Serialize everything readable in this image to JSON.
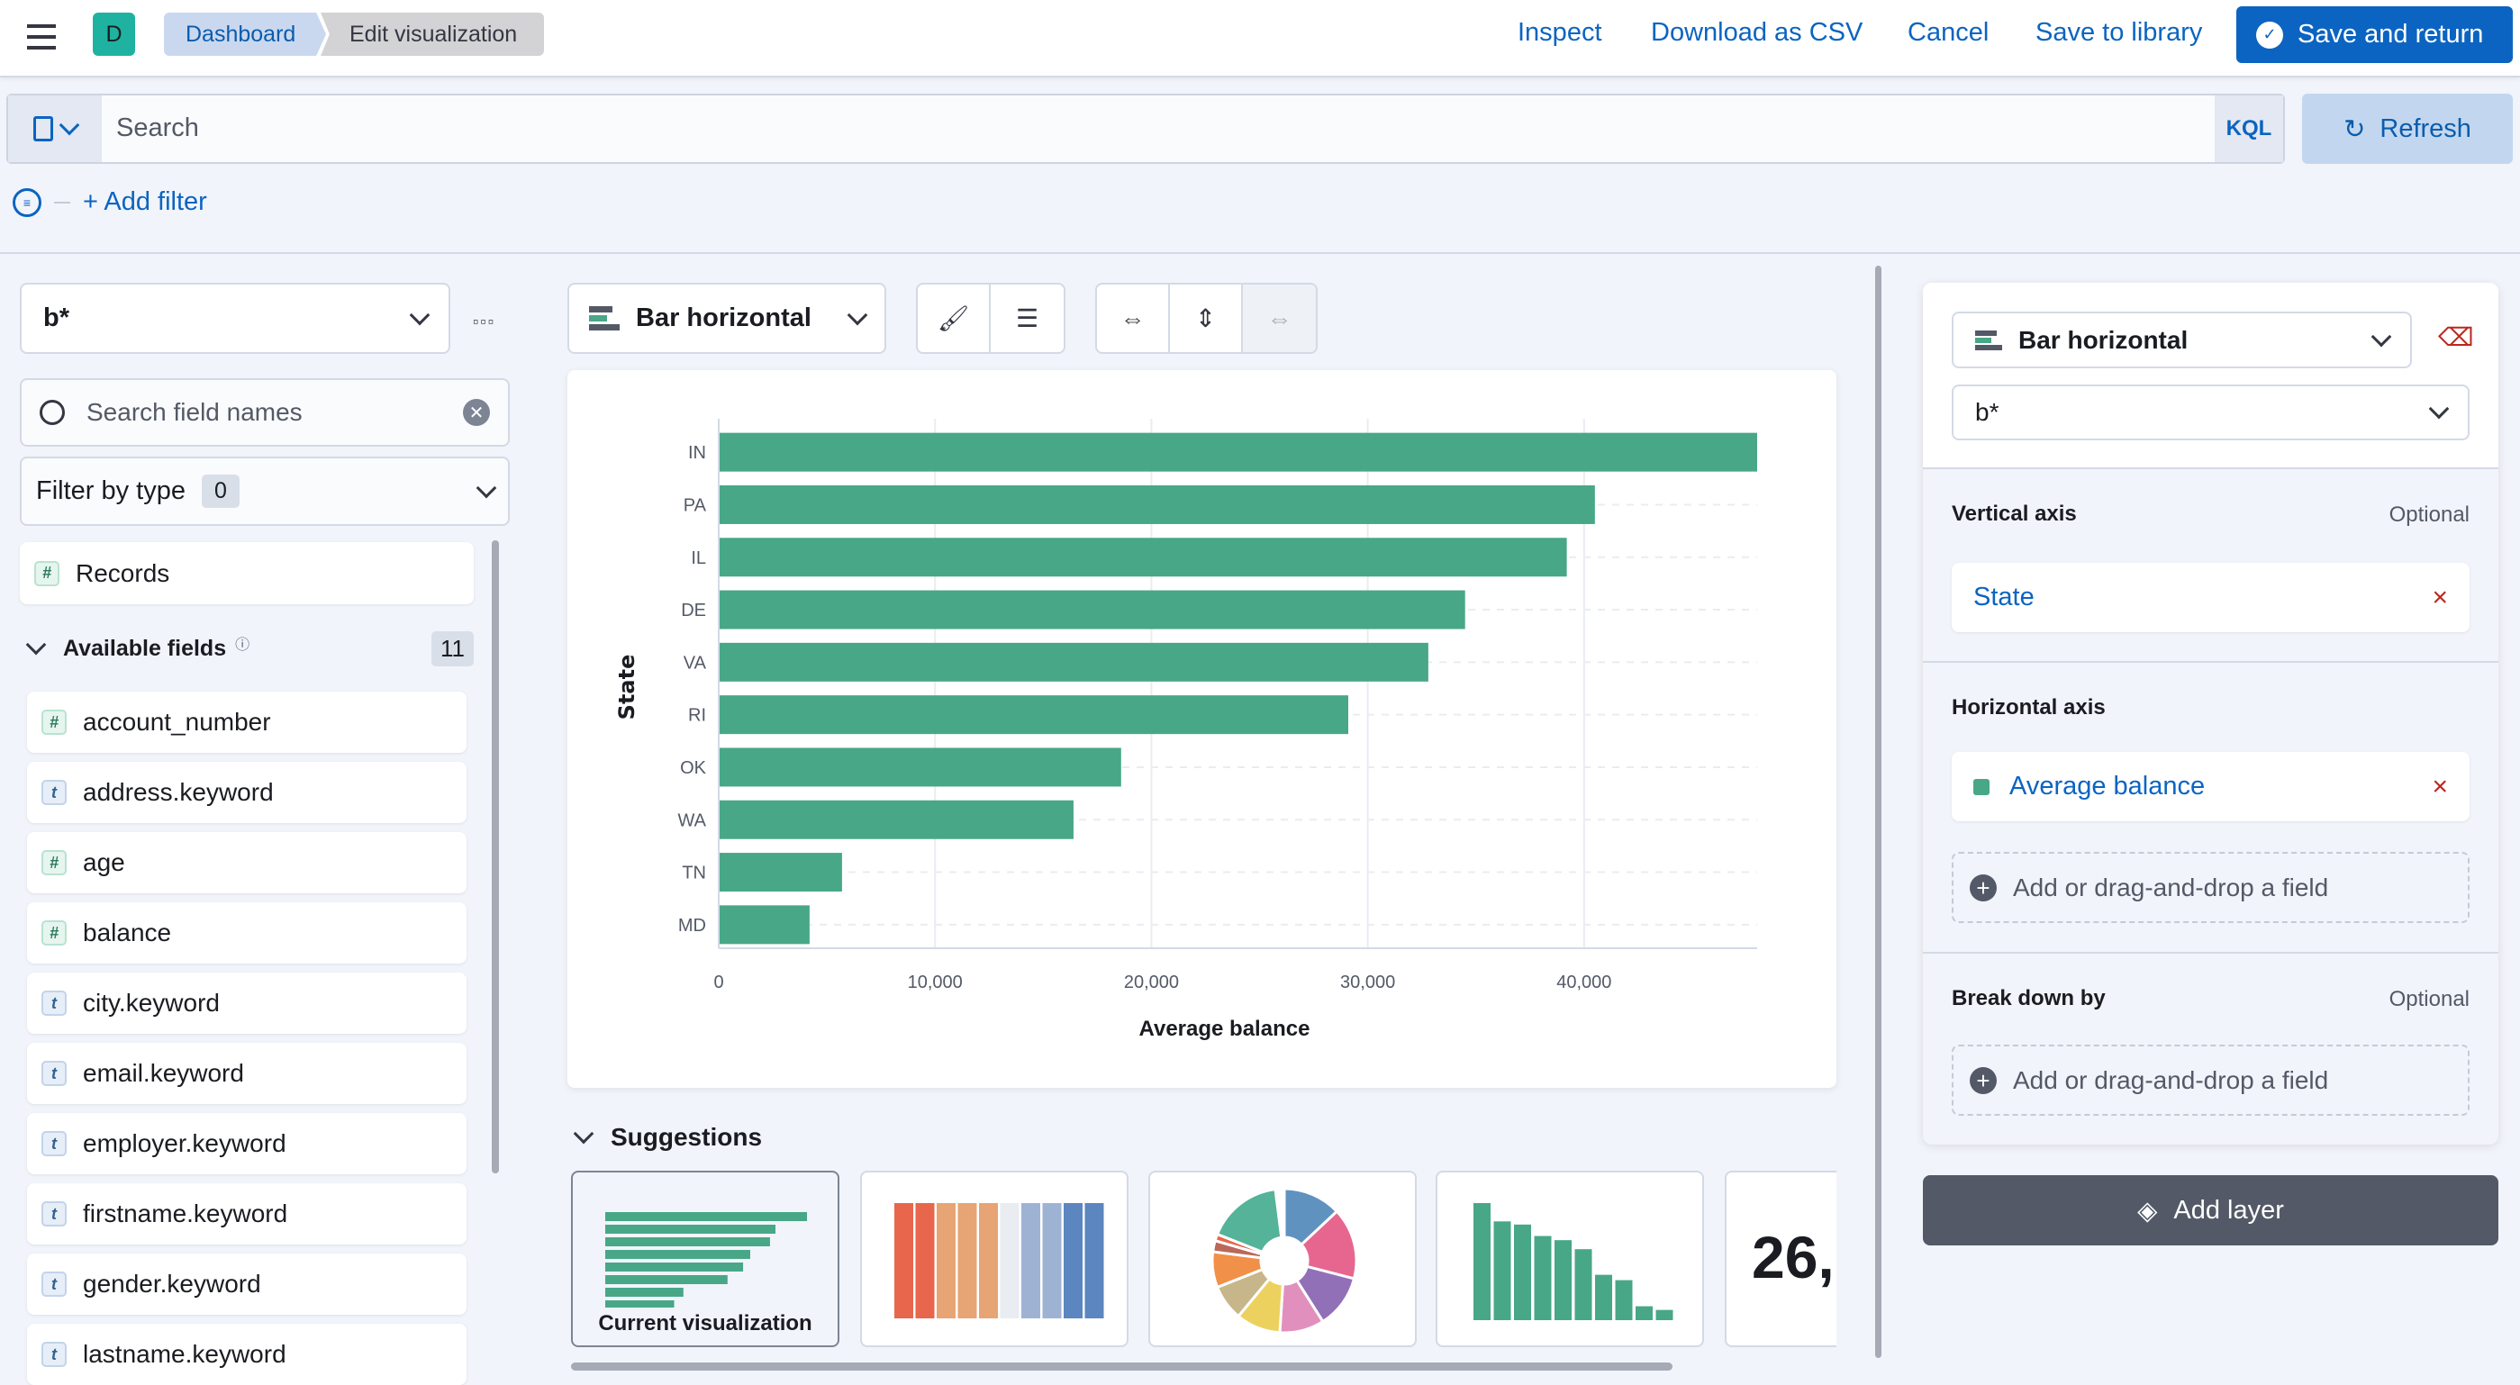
{
  "header": {
    "avatar_initial": "D",
    "breadcrumbs": [
      "Dashboard",
      "Edit visualization"
    ],
    "links": [
      "Inspect",
      "Download as CSV",
      "Cancel",
      "Save to library"
    ],
    "save_and_return": "Save and return"
  },
  "query": {
    "placeholder": "Search",
    "language": "KQL",
    "refresh": "Refresh",
    "add_filter": "+ Add filter"
  },
  "sidebar": {
    "index_pattern": "b*",
    "search_placeholder": "Search field names",
    "filter_by_type": "Filter by type",
    "filter_count": "0",
    "records": "Records",
    "available_fields_label": "Available fields",
    "available_fields_count": "11",
    "fields": [
      {
        "name": "account_number",
        "type": "number"
      },
      {
        "name": "address.keyword",
        "type": "string"
      },
      {
        "name": "age",
        "type": "number"
      },
      {
        "name": "balance",
        "type": "number"
      },
      {
        "name": "city.keyword",
        "type": "string"
      },
      {
        "name": "email.keyword",
        "type": "string"
      },
      {
        "name": "employer.keyword",
        "type": "string"
      },
      {
        "name": "firstname.keyword",
        "type": "string"
      },
      {
        "name": "gender.keyword",
        "type": "string"
      },
      {
        "name": "lastname.keyword",
        "type": "string"
      }
    ]
  },
  "workspace": {
    "chart_type": "Bar horizontal",
    "suggestions_title": "Suggestions",
    "current_visualization": "Current visualization",
    "metric_preview": "26,"
  },
  "chart_data": {
    "type": "bar",
    "orientation": "horizontal",
    "categories": [
      "IN",
      "PA",
      "IL",
      "DE",
      "VA",
      "RI",
      "OK",
      "WA",
      "TN",
      "MD"
    ],
    "values": [
      48000,
      40500,
      39200,
      34500,
      32800,
      29100,
      18600,
      16400,
      5700,
      4200
    ],
    "xlabel": "Average balance",
    "ylabel": "State",
    "xticks": [
      "0",
      "10,000",
      "20,000",
      "30,000",
      "40,000"
    ],
    "xlim": [
      0,
      48000
    ],
    "grid": true,
    "color": "#48a787"
  },
  "config": {
    "chart_type": "Bar horizontal",
    "index_pattern": "b*",
    "vertical_axis": "Vertical axis",
    "vertical_optional": "Optional",
    "vertical_field": "State",
    "horizontal_axis": "Horizontal axis",
    "horizontal_field": "Average balance",
    "add_field": "Add or drag-and-drop a field",
    "break_down_by": "Break down by",
    "break_optional": "Optional",
    "add_layer": "Add layer"
  },
  "colors": {
    "accent": "#0b64c1",
    "bar": "#48a787",
    "danger": "#bd271e"
  }
}
